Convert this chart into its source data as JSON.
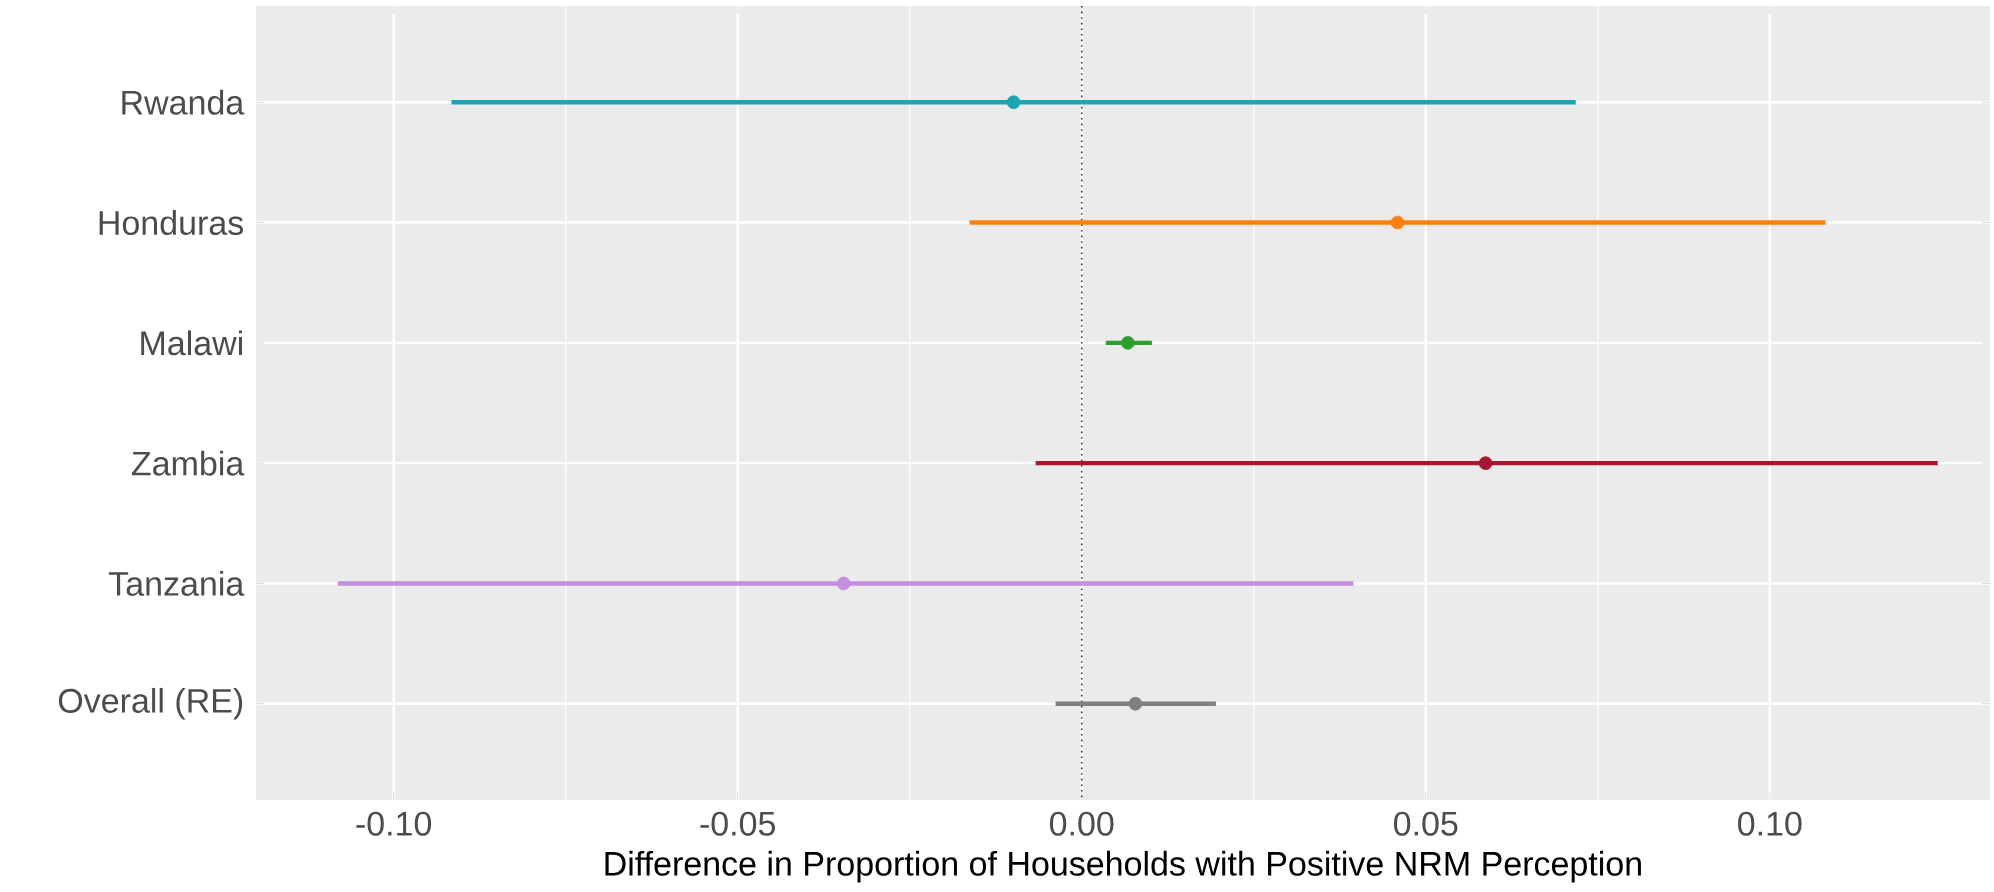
{
  "chart_data": {
    "type": "scatter",
    "orientation": "horizontal",
    "xlabel": "Difference in Proportion of Households with Positive NRM Perception",
    "categories": [
      "Rwanda",
      "Honduras",
      "Malawi",
      "Zambia",
      "Tanzania",
      "Overall (RE)"
    ],
    "values": [
      -0.0099,
      0.0459,
      0.0067,
      0.0587,
      -0.0346,
      0.0078
    ],
    "errors": [
      [
        -0.0916,
        0.0718
      ],
      [
        -0.0163,
        0.1081
      ],
      [
        0.0035,
        0.0102
      ],
      [
        -0.0067,
        0.1244
      ],
      [
        -0.1081,
        0.0395
      ],
      [
        -0.0038,
        0.0195
      ]
    ],
    "colors": [
      "#1aa5b5",
      "#ff7f0e",
      "#2ca02c",
      "#a8172f",
      "#c38ee0",
      "#808080"
    ],
    "xlim": [
      -0.12,
      0.132
    ],
    "xticks": [
      {
        "value": -0.1,
        "label": "-0.10"
      },
      {
        "value": -0.05,
        "label": "-0.05"
      },
      {
        "value": 0,
        "label": "0.00"
      },
      {
        "value": 0.05,
        "label": "0.05"
      },
      {
        "value": 0.1,
        "label": "0.10"
      }
    ],
    "ref_lines": [
      {
        "axis": "x",
        "value": 0,
        "line_style": "dotted",
        "color": "#333333"
      }
    ],
    "grid": true
  }
}
